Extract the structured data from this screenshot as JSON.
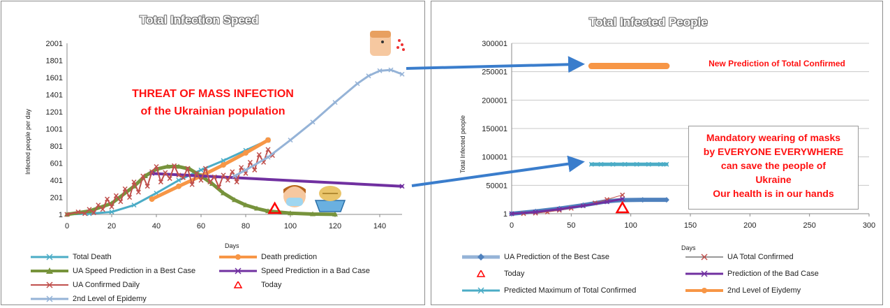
{
  "chart_data": [
    {
      "type": "line",
      "title": "Total Infection Speed",
      "xlabel": "Days",
      "ylabel": "Infected people per day",
      "xlim": [
        0,
        150
      ],
      "ylim": [
        1,
        2001
      ],
      "x_ticks": [
        "0",
        "20",
        "40",
        "60",
        "80",
        "100",
        "120",
        "140"
      ],
      "y_ticks": [
        "1",
        "201",
        "401",
        "601",
        "801",
        "1001",
        "1201",
        "1401",
        "1601",
        "1801",
        "2001"
      ],
      "annotation": [
        "THREAT OF MASS INFECTION",
        "of the Ukrainian population"
      ],
      "today_x": 93,
      "series": [
        {
          "name": "Total Death",
          "color": "#4bacc6",
          "marker": "x",
          "x": [
            0,
            10,
            20,
            30,
            40,
            50,
            60,
            70,
            80,
            90
          ],
          "y": [
            1,
            10,
            30,
            110,
            250,
            400,
            520,
            630,
            750,
            870
          ]
        },
        {
          "name": "Death prediction",
          "color": "#f79646",
          "marker": "circle",
          "x": [
            38,
            50,
            60,
            70,
            80,
            90
          ],
          "y": [
            180,
            330,
            450,
            580,
            720,
            870
          ]
        },
        {
          "name": "UA Speed  Prediction in a  Best Case",
          "color": "#77933c",
          "marker": "triangle",
          "x": [
            0,
            10,
            20,
            30,
            35,
            40,
            45,
            50,
            55,
            60,
            65,
            70,
            75,
            80,
            85,
            90,
            100,
            110,
            120
          ],
          "y": [
            1,
            40,
            130,
            330,
            450,
            530,
            560,
            560,
            530,
            450,
            360,
            250,
            170,
            110,
            70,
            40,
            15,
            5,
            2
          ]
        },
        {
          "name": "Speed Prediction in a Bad Case",
          "color": "#7030a0",
          "marker": "x",
          "x": [
            38,
            150
          ],
          "y": [
            480,
            330
          ]
        },
        {
          "name": "UA Confirmed Daily",
          "color": "#c0504d",
          "marker": "x",
          "x": [
            0,
            5,
            8,
            10,
            12,
            14,
            16,
            18,
            20,
            22,
            24,
            26,
            28,
            30,
            32,
            34,
            36,
            38,
            40,
            42,
            44,
            46,
            48,
            50,
            52,
            54,
            56,
            58,
            60,
            62,
            64,
            66,
            68,
            70,
            72,
            74,
            76,
            78,
            80,
            82,
            84,
            86,
            88,
            90,
            92
          ],
          "y": [
            1,
            30,
            10,
            60,
            20,
            110,
            60,
            180,
            90,
            220,
            150,
            300,
            200,
            380,
            260,
            450,
            330,
            500,
            560,
            380,
            490,
            420,
            570,
            460,
            430,
            540,
            350,
            480,
            400,
            540,
            380,
            440,
            320,
            460,
            400,
            500,
            380,
            550,
            480,
            610,
            520,
            700,
            610,
            760,
            690
          ]
        },
        {
          "name": "Today",
          "color": "#ff0000",
          "marker": "triangle-open",
          "x": [
            93
          ],
          "y": [
            1
          ]
        },
        {
          "name": "2nd Level of Epidemy",
          "color": "#95b3d7",
          "marker": "x",
          "x": [
            75,
            80,
            90,
            100,
            110,
            120,
            130,
            135,
            140,
            145,
            150
          ],
          "y": [
            450,
            520,
            670,
            870,
            1080,
            1310,
            1530,
            1620,
            1680,
            1690,
            1640
          ]
        }
      ]
    },
    {
      "type": "scatter",
      "title": "Total Infected People",
      "xlabel": "Days",
      "ylabel": "Total Infected people",
      "xlim": [
        0,
        300
      ],
      "ylim": [
        1,
        300001
      ],
      "x_ticks": [
        "0",
        "50",
        "100",
        "150",
        "200",
        "250",
        "300"
      ],
      "y_ticks": [
        "1",
        "50001",
        "100001",
        "150001",
        "200001",
        "250001",
        "300001"
      ],
      "annotation_top": "New  Prediction of  Total Confirmed",
      "annotation_box": [
        "Mandatory wearing of masks",
        "by EVERYONE EVERYWHERE",
        "can  save the people of",
        "Ukraine",
        "Our health is in our hands"
      ],
      "today_x": 93,
      "series": [
        {
          "name": "UA Prediction of the Best Case",
          "color": "#4f81bd",
          "marker": "diamond",
          "x": [
            0,
            20,
            40,
            60,
            80,
            93,
            110,
            130
          ],
          "y": [
            1,
            4000,
            9000,
            15000,
            22000,
            24000,
            24500,
            24500
          ]
        },
        {
          "name": "UA Total Confirmed",
          "color": "#c0504d",
          "marker": "x",
          "x": [
            0,
            10,
            20,
            30,
            40,
            50,
            60,
            70,
            80,
            93
          ],
          "y": [
            1,
            200,
            1000,
            3000,
            6000,
            9500,
            14000,
            19000,
            25000,
            33000
          ]
        },
        {
          "name": "Today",
          "color": "#ff0000",
          "marker": "triangle-open",
          "x": [
            93
          ],
          "y": [
            1
          ]
        },
        {
          "name": "Prediction of the Bad Case",
          "color": "#7030a0",
          "marker": "x",
          "x": [
            0,
            20,
            40,
            60,
            80,
            93
          ],
          "y": [
            1,
            3000,
            8000,
            14000,
            21000,
            26000
          ]
        },
        {
          "name": "Predicted Maximum of Total Confirmed",
          "color": "#4bacc6",
          "marker": "x",
          "x": [
            67,
            75,
            85,
            95,
            105,
            115,
            125,
            130
          ],
          "y": [
            87000,
            87000,
            87000,
            87000,
            87000,
            87000,
            87000,
            87000
          ]
        },
        {
          "name": "2nd Level of Eiydemy",
          "color": "#f79646",
          "marker": "circle",
          "x": [
            67,
            75,
            85,
            95,
            105,
            115,
            125,
            130
          ],
          "y": [
            260000,
            260000,
            260000,
            260000,
            260000,
            260000,
            260000,
            260000
          ]
        }
      ]
    }
  ]
}
